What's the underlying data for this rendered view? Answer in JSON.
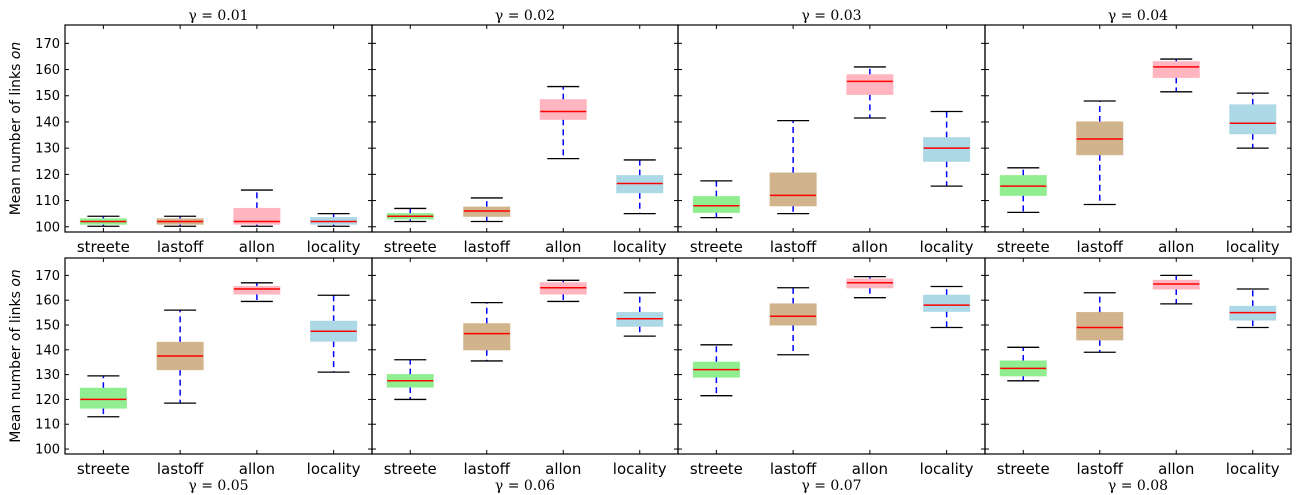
{
  "chart_data": {
    "type": "boxplot",
    "ylabel": "Mean number of links ",
    "ylabel_italic": "on",
    "ylim": [
      98,
      177
    ],
    "yticks": [
      100,
      110,
      120,
      130,
      140,
      150,
      160,
      170
    ],
    "categories": [
      "streete",
      "lastoff",
      "allon",
      "locality"
    ],
    "colors": {
      "streete": "#90ee90",
      "lastoff": "#d2b48c",
      "allon": "#ffb6c1",
      "locality": "#add8e6",
      "median": "#ff0000",
      "whisker": "#0000ff",
      "cap": "#000000"
    },
    "panels": [
      {
        "title": "γ = 0.01",
        "boxes": [
          {
            "category": "streete",
            "whislo": 100.2,
            "q1": 101.0,
            "med": 102.0,
            "q3": 103.0,
            "whishi": 104.0
          },
          {
            "category": "lastoff",
            "whislo": 100.2,
            "q1": 101.0,
            "med": 102.0,
            "q3": 103.0,
            "whishi": 104.0
          },
          {
            "category": "allon",
            "whislo": 100.2,
            "q1": 101.0,
            "med": 102.0,
            "q3": 107.0,
            "whishi": 114.0
          },
          {
            "category": "locality",
            "whislo": 100.2,
            "q1": 101.0,
            "med": 102.0,
            "q3": 103.5,
            "whishi": 105.0
          }
        ]
      },
      {
        "title": "γ = 0.02",
        "boxes": [
          {
            "category": "streete",
            "whislo": 102.0,
            "q1": 103.0,
            "med": 104.0,
            "q3": 105.0,
            "whishi": 107.0
          },
          {
            "category": "lastoff",
            "whislo": 102.0,
            "q1": 104.0,
            "med": 106.0,
            "q3": 107.5,
            "whishi": 111.0
          },
          {
            "category": "allon",
            "whislo": 126.0,
            "q1": 141.0,
            "med": 144.0,
            "q3": 148.5,
            "whishi": 153.5
          },
          {
            "category": "locality",
            "whislo": 105.0,
            "q1": 113.0,
            "med": 116.5,
            "q3": 119.5,
            "whishi": 125.5
          }
        ]
      },
      {
        "title": "γ = 0.03",
        "boxes": [
          {
            "category": "streete",
            "whislo": 103.5,
            "q1": 105.5,
            "med": 108.0,
            "q3": 111.5,
            "whishi": 117.5
          },
          {
            "category": "lastoff",
            "whislo": 105.0,
            "q1": 108.0,
            "med": 112.0,
            "q3": 120.5,
            "whishi": 140.5
          },
          {
            "category": "allon",
            "whislo": 141.5,
            "q1": 150.5,
            "med": 155.5,
            "q3": 158.0,
            "whishi": 161.0
          },
          {
            "category": "locality",
            "whislo": 115.5,
            "q1": 125.0,
            "med": 130.0,
            "q3": 134.0,
            "whishi": 144.0
          }
        ]
      },
      {
        "title": "γ = 0.04",
        "boxes": [
          {
            "category": "streete",
            "whislo": 105.5,
            "q1": 112.0,
            "med": 115.5,
            "q3": 119.5,
            "whishi": 122.5
          },
          {
            "category": "lastoff",
            "whislo": 108.5,
            "q1": 127.5,
            "med": 133.5,
            "q3": 140.0,
            "whishi": 148.0
          },
          {
            "category": "allon",
            "whislo": 151.5,
            "q1": 157.0,
            "med": 161.0,
            "q3": 163.0,
            "whishi": 164.0
          },
          {
            "category": "locality",
            "whislo": 130.0,
            "q1": 135.5,
            "med": 139.5,
            "q3": 146.5,
            "whishi": 151.0
          }
        ]
      },
      {
        "title": "γ = 0.05",
        "boxes": [
          {
            "category": "streete",
            "whislo": 113.0,
            "q1": 116.5,
            "med": 120.0,
            "q3": 124.5,
            "whishi": 129.5
          },
          {
            "category": "lastoff",
            "whislo": 118.5,
            "q1": 132.0,
            "med": 137.5,
            "q3": 143.0,
            "whishi": 156.0
          },
          {
            "category": "allon",
            "whislo": 159.5,
            "q1": 162.5,
            "med": 164.5,
            "q3": 165.5,
            "whishi": 167.0
          },
          {
            "category": "locality",
            "whislo": 131.0,
            "q1": 143.5,
            "med": 147.5,
            "q3": 151.5,
            "whishi": 162.0
          }
        ]
      },
      {
        "title": "γ = 0.06",
        "boxes": [
          {
            "category": "streete",
            "whislo": 120.0,
            "q1": 125.0,
            "med": 127.5,
            "q3": 130.0,
            "whishi": 136.0
          },
          {
            "category": "lastoff",
            "whislo": 135.5,
            "q1": 140.0,
            "med": 146.5,
            "q3": 150.5,
            "whishi": 159.0
          },
          {
            "category": "allon",
            "whislo": 159.5,
            "q1": 162.5,
            "med": 165.0,
            "q3": 167.0,
            "whishi": 168.0
          },
          {
            "category": "locality",
            "whislo": 145.5,
            "q1": 149.5,
            "med": 152.5,
            "q3": 155.0,
            "whishi": 163.0
          }
        ]
      },
      {
        "title": "γ = 0.07",
        "boxes": [
          {
            "category": "streete",
            "whislo": 121.5,
            "q1": 129.0,
            "med": 132.0,
            "q3": 135.0,
            "whishi": 142.0
          },
          {
            "category": "lastoff",
            "whislo": 138.0,
            "q1": 150.0,
            "med": 153.5,
            "q3": 158.5,
            "whishi": 165.0
          },
          {
            "category": "allon",
            "whislo": 161.0,
            "q1": 165.0,
            "med": 167.0,
            "q3": 168.5,
            "whishi": 169.5
          },
          {
            "category": "locality",
            "whislo": 149.0,
            "q1": 155.5,
            "med": 158.0,
            "q3": 162.0,
            "whishi": 165.5
          }
        ]
      },
      {
        "title": "γ = 0.08",
        "boxes": [
          {
            "category": "streete",
            "whislo": 127.5,
            "q1": 129.5,
            "med": 132.5,
            "q3": 135.5,
            "whishi": 141.0
          },
          {
            "category": "lastoff",
            "whislo": 139.0,
            "q1": 144.0,
            "med": 149.0,
            "q3": 155.0,
            "whishi": 163.0
          },
          {
            "category": "allon",
            "whislo": 158.5,
            "q1": 164.5,
            "med": 166.5,
            "q3": 168.0,
            "whishi": 170.0
          },
          {
            "category": "locality",
            "whislo": 149.0,
            "q1": 152.0,
            "med": 155.0,
            "q3": 157.5,
            "whishi": 164.5
          }
        ]
      }
    ]
  }
}
